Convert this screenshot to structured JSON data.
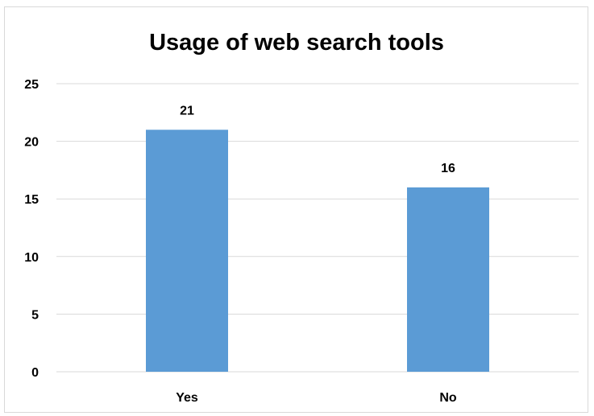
{
  "chart_data": {
    "type": "bar",
    "title": "Usage of web search tools",
    "categories": [
      "Yes",
      "No"
    ],
    "values": [
      21,
      16
    ],
    "data_labels": [
      "21",
      "16"
    ],
    "ylim": [
      0,
      25
    ],
    "yticks": [
      "0",
      "5",
      "10",
      "15",
      "20",
      "25"
    ],
    "xlabel": "",
    "ylabel": "",
    "grid": true,
    "legend": "none",
    "bar_color": "#5b9bd5",
    "grid_color": "#d9d9d9"
  }
}
